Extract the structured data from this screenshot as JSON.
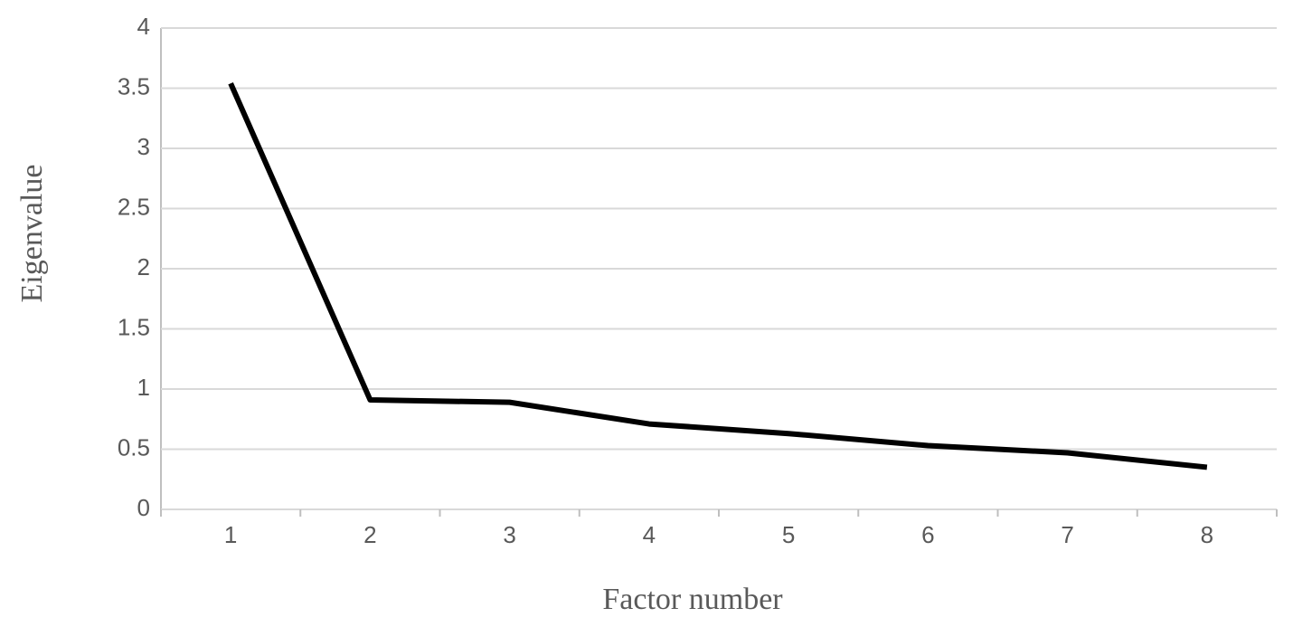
{
  "chart_data": {
    "type": "line",
    "x_label": "Factor number",
    "y_label": "Eigenvalue",
    "categories": [
      "1",
      "2",
      "3",
      "4",
      "5",
      "6",
      "7",
      "8"
    ],
    "series": [
      {
        "color": "#000000",
        "values": [
          3.54,
          0.91,
          0.89,
          0.71,
          0.63,
          0.53,
          0.47,
          0.35
        ]
      }
    ],
    "ylim": [
      0,
      4
    ],
    "yticks": [
      0,
      0.5,
      1,
      1.5,
      2,
      2.5,
      3,
      3.5,
      4
    ],
    "grid": true
  }
}
